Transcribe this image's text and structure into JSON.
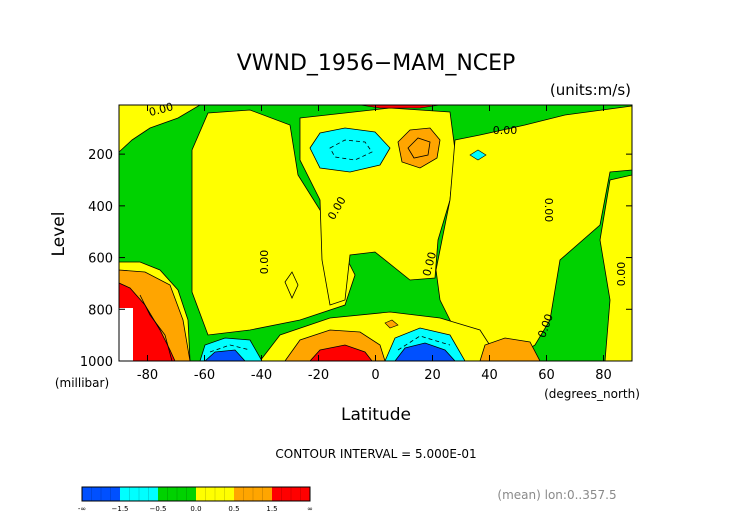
{
  "chart_data": {
    "type": "heatmap",
    "title": "VWND_1956−MAM_NCEP",
    "units": "(units:m/s)",
    "xlabel": "Latitude",
    "x_units": "(degrees_north)",
    "ylabel": "Level",
    "y_units": "(millibar)",
    "xlim": [
      -90,
      90
    ],
    "ylim": [
      1000,
      10
    ],
    "y_inverted": true,
    "x_ticks": [
      -80,
      -60,
      -40,
      -20,
      0,
      20,
      40,
      60,
      80
    ],
    "y_ticks": [
      200,
      400,
      600,
      800,
      1000
    ],
    "contour_interval_text": "CONTOUR INTERVAL = 5.000E-01",
    "contour_labels": [
      "0.00",
      "0.00",
      "0.00",
      "0.00",
      "0.00",
      "0.00",
      "0.00",
      "0.00"
    ],
    "mean_note": "(mean) lon:0..357.5",
    "colorbar": {
      "colors": [
        "#0050ff",
        "#00ffff",
        "#00d200",
        "#ffff00",
        "#ffa500",
        "#ff0000"
      ],
      "labels": [
        "-∞",
        "−1.5",
        "−0.5",
        "0.0",
        "0.5",
        "1.5",
        "∞"
      ]
    }
  }
}
